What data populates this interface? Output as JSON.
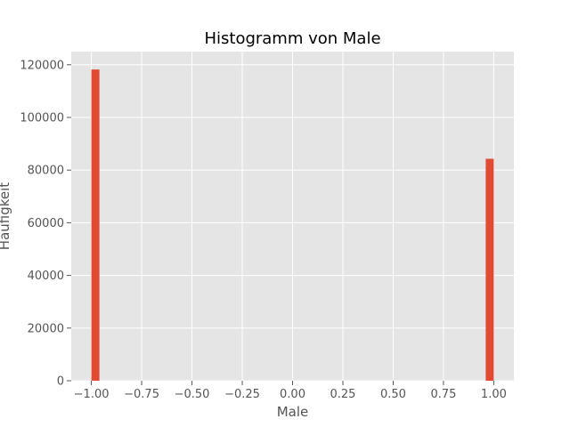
{
  "chart_data": {
    "type": "bar",
    "title": "Histogramm von Male",
    "xlabel": "Male",
    "ylabel": "Häufigkeit",
    "xlim": [
      -1.1,
      1.1
    ],
    "ylim": [
      0,
      125000
    ],
    "xticks": [
      -1.0,
      -0.75,
      -0.5,
      -0.25,
      0.0,
      0.25,
      0.5,
      0.75,
      1.0
    ],
    "xtick_labels": [
      "−1.00",
      "−0.75",
      "−0.50",
      "−0.25",
      "0.00",
      "0.25",
      "0.50",
      "0.75",
      "1.00"
    ],
    "yticks": [
      0,
      20000,
      40000,
      60000,
      80000,
      100000,
      120000
    ],
    "ytick_labels": [
      "0",
      "20000",
      "40000",
      "60000",
      "80000",
      "100000",
      "120000"
    ],
    "bins": [
      {
        "x0": -1.0,
        "x1": -0.96,
        "value": 118200
      },
      {
        "x0": 0.96,
        "x1": 1.0,
        "value": 84300
      }
    ],
    "grid": true,
    "colors": {
      "bar": "#E24A33",
      "background": "#E5E5E5",
      "grid": "#FFFFFF"
    }
  }
}
